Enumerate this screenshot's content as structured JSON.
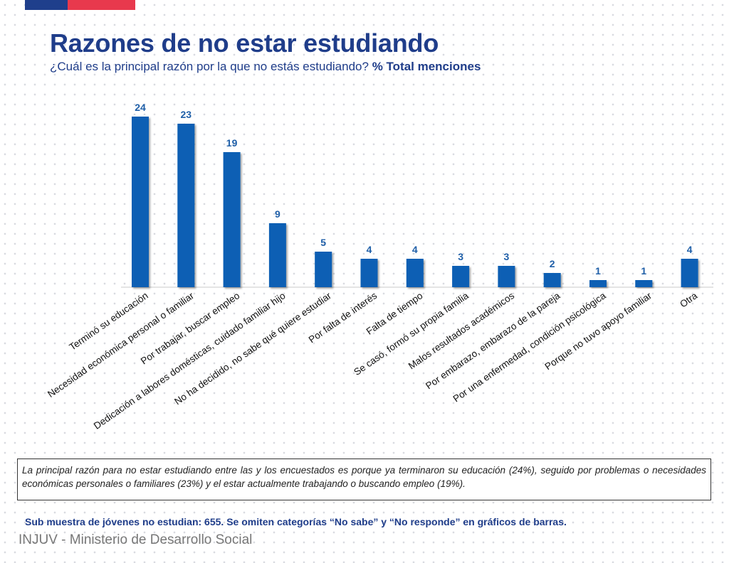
{
  "header": {
    "title": "Razones de no estar estudiando",
    "subtitle_question": "¿Cuál es la principal razón por la que no estás estudiando?",
    "subtitle_measure": "% Total menciones",
    "bar_colors": {
      "blue": "#1f3f8c",
      "red": "#e8394d"
    }
  },
  "chart_data": {
    "type": "bar",
    "categories": [
      "Terminó su educación",
      "Necesidad económica personal o familiar",
      "Por trabajar, buscar empleo",
      "Dedicación a labores domésticas, cuidado familiar hijo",
      "No ha decidido, no sabe qué quiere estudiar",
      "Por falta de interés",
      "Falta de tiempo",
      "Se casó, formó su propia familia",
      "Malos resultados académicos",
      "Por embarazo, embarazo de la pareja",
      "Por una enfermedad, condición psicológica",
      "Porque no tuvo apoyo familiar",
      "Otra"
    ],
    "values": [
      24,
      23,
      19,
      9,
      5,
      4,
      4,
      3,
      3,
      2,
      1,
      1,
      4
    ],
    "ylim": [
      0,
      25
    ],
    "bar_color": "#0a5fb4",
    "label_color": "#1f5fa8",
    "grid": false
  },
  "summary": {
    "text": "La principal razón para no estar estudiando entre las y los encuestados es porque ya terminaron su educación (24%), seguido por problemas o necesidades económicas personales o familiares (23%) y el estar actualmente trabajando o buscando empleo (19%)."
  },
  "note": "Sub muestra de jóvenes no estudian: 655. Se omiten categorías “No sabe” y “No responde” en gráficos de barras.",
  "footer": "INJUV - Ministerio de Desarrollo Social"
}
